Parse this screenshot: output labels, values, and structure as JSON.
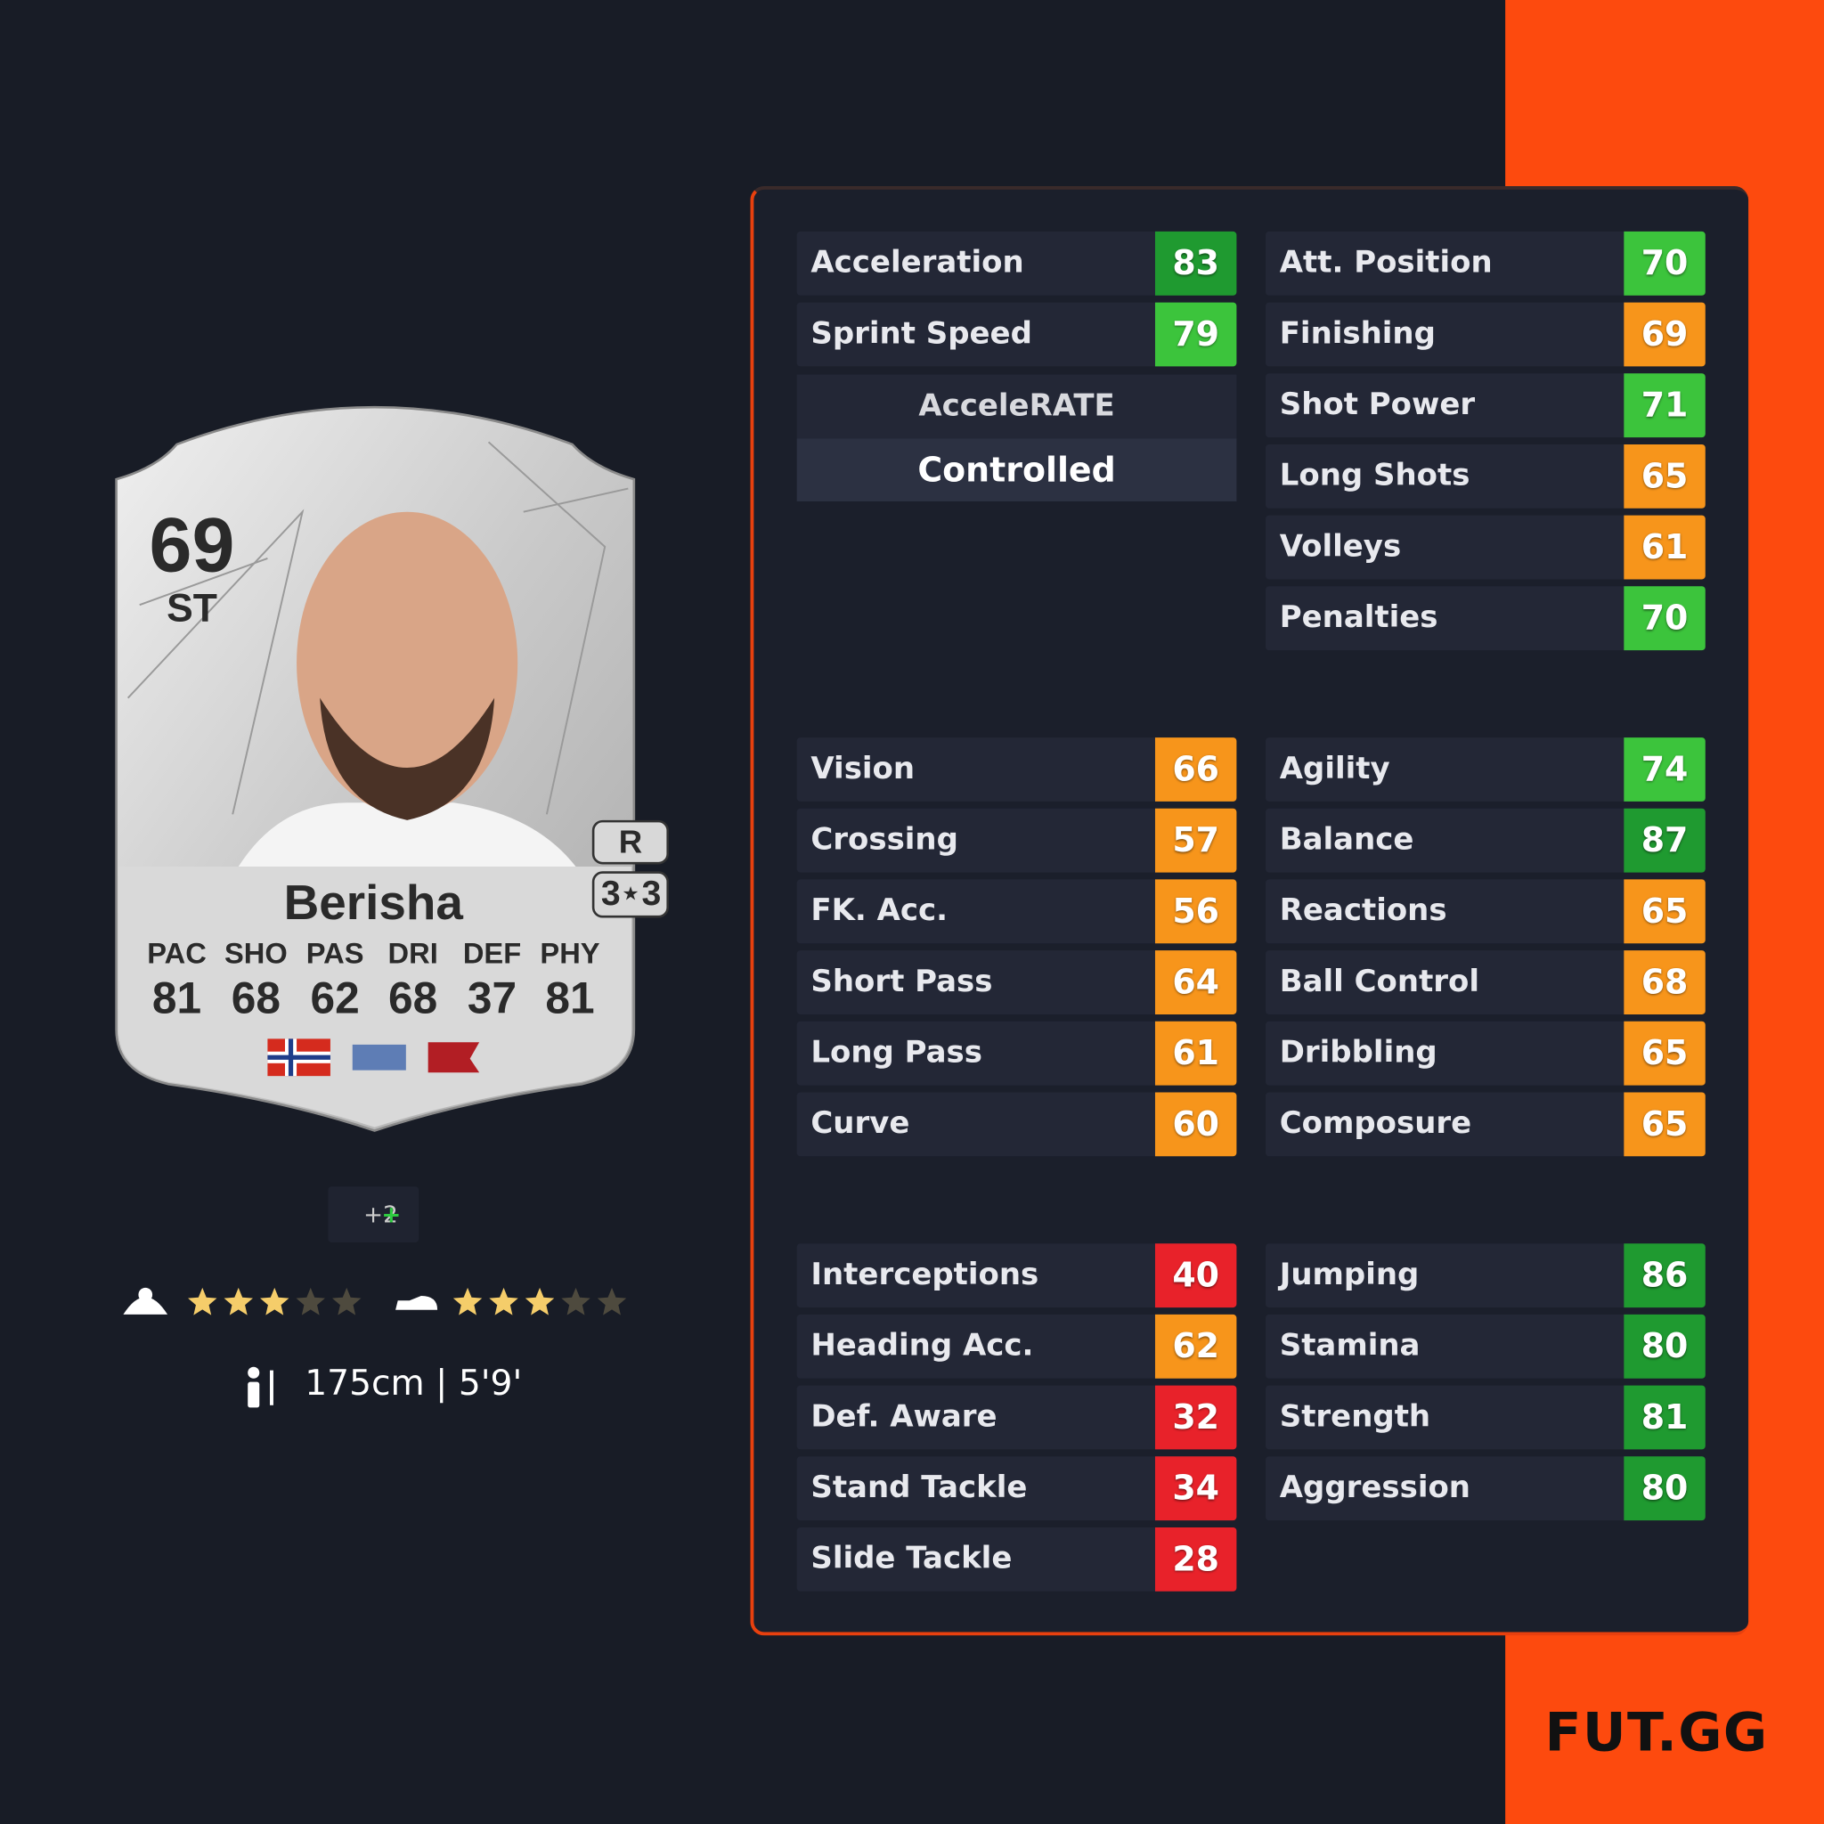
{
  "card": {
    "rating": 69,
    "position": "ST",
    "name": "Berisha",
    "foot": "R",
    "skill_moves": 3,
    "weak_foot": 3,
    "attributes": [
      {
        "label": "PAC",
        "value": 81
      },
      {
        "label": "SHO",
        "value": 68
      },
      {
        "label": "PAS",
        "value": 62
      },
      {
        "label": "DRI",
        "value": 68
      },
      {
        "label": "DEF",
        "value": 37
      },
      {
        "label": "PHY",
        "value": 81
      }
    ]
  },
  "chem_bonus": "+2",
  "height": "175cm | 5'9'",
  "accelerate": {
    "label": "AcceleRATE",
    "type": "Controlled"
  },
  "stat_groups": [
    {
      "left": [
        {
          "label": "Acceleration",
          "value": 83
        },
        {
          "label": "Sprint Speed",
          "value": 79
        }
      ],
      "right": [
        {
          "label": "Att. Position",
          "value": 70
        },
        {
          "label": "Finishing",
          "value": 69
        },
        {
          "label": "Shot Power",
          "value": 71
        },
        {
          "label": "Long Shots",
          "value": 65
        },
        {
          "label": "Volleys",
          "value": 61
        },
        {
          "label": "Penalties",
          "value": 70
        }
      ]
    },
    {
      "left": [
        {
          "label": "Vision",
          "value": 66
        },
        {
          "label": "Crossing",
          "value": 57
        },
        {
          "label": "FK. Acc.",
          "value": 56
        },
        {
          "label": "Short Pass",
          "value": 64
        },
        {
          "label": "Long Pass",
          "value": 61
        },
        {
          "label": "Curve",
          "value": 60
        }
      ],
      "right": [
        {
          "label": "Agility",
          "value": 74
        },
        {
          "label": "Balance",
          "value": 87
        },
        {
          "label": "Reactions",
          "value": 65
        },
        {
          "label": "Ball Control",
          "value": 68
        },
        {
          "label": "Dribbling",
          "value": 65
        },
        {
          "label": "Composure",
          "value": 65
        }
      ]
    },
    {
      "left": [
        {
          "label": "Interceptions",
          "value": 40
        },
        {
          "label": "Heading Acc.",
          "value": 62
        },
        {
          "label": "Def. Aware",
          "value": 32
        },
        {
          "label": "Stand Tackle",
          "value": 34
        },
        {
          "label": "Slide Tackle",
          "value": 28
        }
      ],
      "right": [
        {
          "label": "Jumping",
          "value": 86
        },
        {
          "label": "Stamina",
          "value": 80
        },
        {
          "label": "Strength",
          "value": 81
        },
        {
          "label": "Aggression",
          "value": 80
        }
      ]
    }
  ],
  "logo": "FUT.GG"
}
